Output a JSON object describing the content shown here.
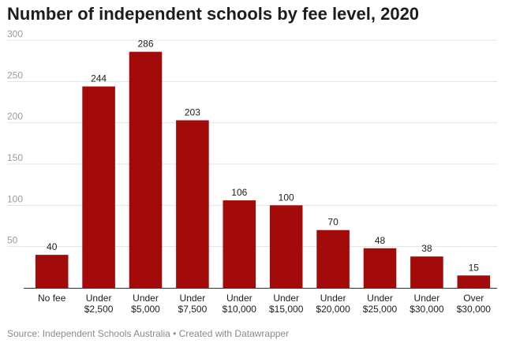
{
  "title": "Number of independent schools by fee level, 2020",
  "footer": {
    "source": "Source: Independent Schools Australia",
    "separator": "•",
    "credit": "Created with Datawrapper"
  },
  "chart_data": {
    "type": "bar",
    "title": "Number of independent schools by fee level, 2020",
    "xlabel": "",
    "ylabel": "",
    "categories": [
      [
        "No fee"
      ],
      [
        "Under",
        "$2,500"
      ],
      [
        "Under",
        "$5,000"
      ],
      [
        "Under",
        "$7,500"
      ],
      [
        "Under",
        "$10,000"
      ],
      [
        "Under",
        "$15,000"
      ],
      [
        "Under",
        "$20,000"
      ],
      [
        "Under",
        "$25,000"
      ],
      [
        "Under",
        "$30,000"
      ],
      [
        "Over",
        "$30,000"
      ]
    ],
    "values": [
      40,
      244,
      286,
      203,
      106,
      100,
      70,
      48,
      38,
      15
    ],
    "data_labels": [
      "40",
      "244",
      "286",
      "203",
      "106",
      "100",
      "70",
      "48",
      "38",
      "15"
    ],
    "ylim": [
      0,
      300
    ],
    "yticks": [
      50,
      100,
      150,
      200,
      250,
      300
    ],
    "grid": true,
    "bar_color": "#a30a0a"
  }
}
